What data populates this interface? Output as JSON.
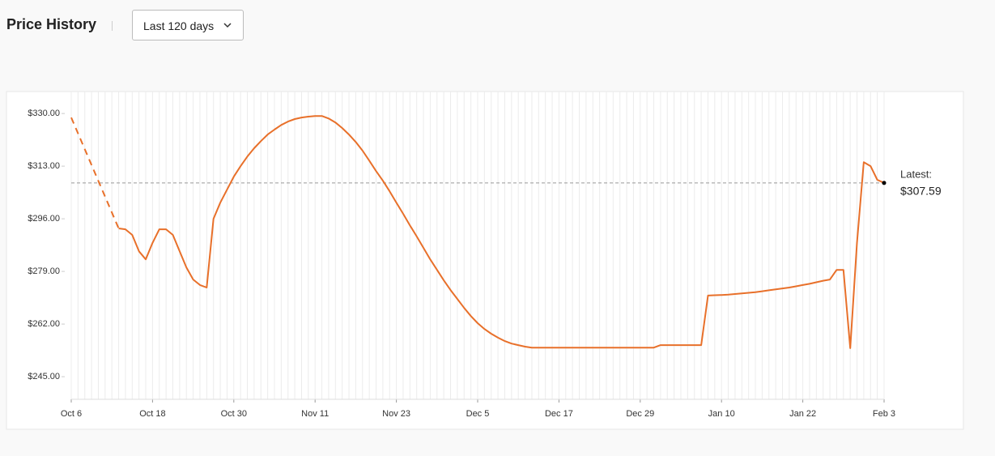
{
  "header": {
    "title": "Price History",
    "range": "Last 120 days"
  },
  "chart_data": {
    "type": "line",
    "categories": [
      "Oct 6",
      null,
      null,
      null,
      null,
      null,
      null,
      null,
      null,
      null,
      null,
      null,
      "Oct 18",
      null,
      null,
      null,
      null,
      null,
      null,
      null,
      null,
      null,
      null,
      null,
      "Oct 30",
      null,
      null,
      null,
      null,
      null,
      null,
      null,
      null,
      null,
      null,
      null,
      "Nov 11",
      null,
      null,
      null,
      null,
      null,
      null,
      null,
      null,
      null,
      null,
      null,
      "Nov 23",
      null,
      null,
      null,
      null,
      null,
      null,
      null,
      null,
      null,
      null,
      null,
      "Dec 5",
      null,
      null,
      null,
      null,
      null,
      null,
      null,
      null,
      null,
      null,
      null,
      "Dec 17",
      null,
      null,
      null,
      null,
      null,
      null,
      null,
      null,
      null,
      null,
      null,
      "Dec 29",
      null,
      null,
      null,
      null,
      null,
      null,
      null,
      null,
      null,
      null,
      null,
      "Jan 10",
      null,
      null,
      null,
      null,
      null,
      null,
      null,
      null,
      null,
      null,
      null,
      "Jan 22",
      null,
      null,
      null,
      null,
      null,
      null,
      null,
      null,
      null,
      null,
      null,
      "Feb 3"
    ],
    "values": [
      328.7,
      null,
      null,
      null,
      null,
      null,
      null,
      292.9,
      292.6,
      290.8,
      285.5,
      282.9,
      288.2,
      292.6,
      292.6,
      290.8,
      285.5,
      280.3,
      276.4,
      274.6,
      273.8,
      296.0,
      301.2,
      305.4,
      309.6,
      313.0,
      316.1,
      318.8,
      321.1,
      323.2,
      324.8,
      326.3,
      327.4,
      328.2,
      328.7,
      329.0,
      329.2,
      329.2,
      328.4,
      327.1,
      325.3,
      323.2,
      320.8,
      318.0,
      314.8,
      311.4,
      308.3,
      304.9,
      301.2,
      297.6,
      293.9,
      290.3,
      286.6,
      282.9,
      279.5,
      276.1,
      273.0,
      270.1,
      267.2,
      264.6,
      262.3,
      260.4,
      258.9,
      257.6,
      256.5,
      255.7,
      255.2,
      254.7,
      254.4,
      254.4,
      254.4,
      254.4,
      254.4,
      254.4,
      254.4,
      254.4,
      254.4,
      254.4,
      254.4,
      254.4,
      254.4,
      254.4,
      254.4,
      254.4,
      254.4,
      254.4,
      254.4,
      255.2,
      255.2,
      255.2,
      255.2,
      255.2,
      255.2,
      255.2,
      271.2,
      271.3,
      271.4,
      271.5,
      271.7,
      271.9,
      272.1,
      272.3,
      272.6,
      272.9,
      273.2,
      273.5,
      273.8,
      274.2,
      274.6,
      275.0,
      275.5,
      276.0,
      276.4,
      279.5,
      279.5,
      254.2,
      288.2,
      314.3,
      313.0,
      308.6,
      307.59
    ],
    "color": "#e8702a",
    "ylim": [
      237.7,
      337.1
    ],
    "yticks": [
      {
        "value": 245,
        "label": "$245.00"
      },
      {
        "value": 262,
        "label": "$262.00"
      },
      {
        "value": 279,
        "label": "$279.00"
      },
      {
        "value": 296,
        "label": "$296.00"
      },
      {
        "value": 313,
        "label": "$313.00"
      },
      {
        "value": 330,
        "label": "$330.00"
      }
    ],
    "latest": {
      "label": "Latest:",
      "value": 307.59,
      "value_label": "$307.59"
    }
  }
}
